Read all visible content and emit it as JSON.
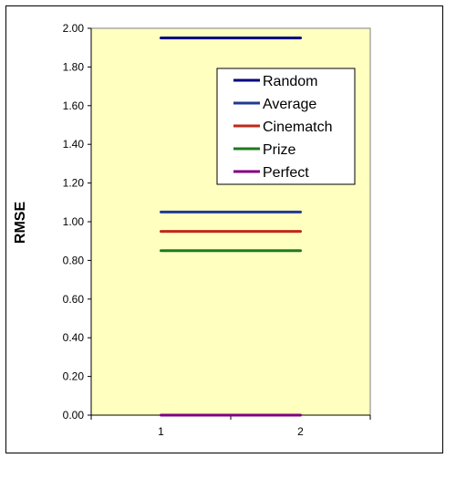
{
  "chart_data": {
    "type": "line",
    "title": "",
    "xlabel": "",
    "ylabel": "RMSE",
    "x": [
      1,
      2
    ],
    "ylim": [
      0,
      2
    ],
    "yticks": [
      "0.00",
      "0.20",
      "0.40",
      "0.60",
      "0.80",
      "1.00",
      "1.20",
      "1.40",
      "1.60",
      "1.80",
      "2.00"
    ],
    "xticks": [
      "1",
      "2"
    ],
    "plot_background": "#ffffc0",
    "grid": false,
    "legend_position": "top-right",
    "series": [
      {
        "name": "Random",
        "values": [
          1.95,
          1.95
        ],
        "color": "#000080"
      },
      {
        "name": "Average",
        "values": [
          1.05,
          1.05
        ],
        "color": "#1f3a93"
      },
      {
        "name": "Cinematch",
        "values": [
          0.95,
          0.95
        ],
        "color": "#c0281a"
      },
      {
        "name": "Prize",
        "values": [
          0.85,
          0.85
        ],
        "color": "#1e7a1e"
      },
      {
        "name": "Perfect",
        "values": [
          0.0,
          0.0
        ],
        "color": "#800080"
      }
    ]
  }
}
